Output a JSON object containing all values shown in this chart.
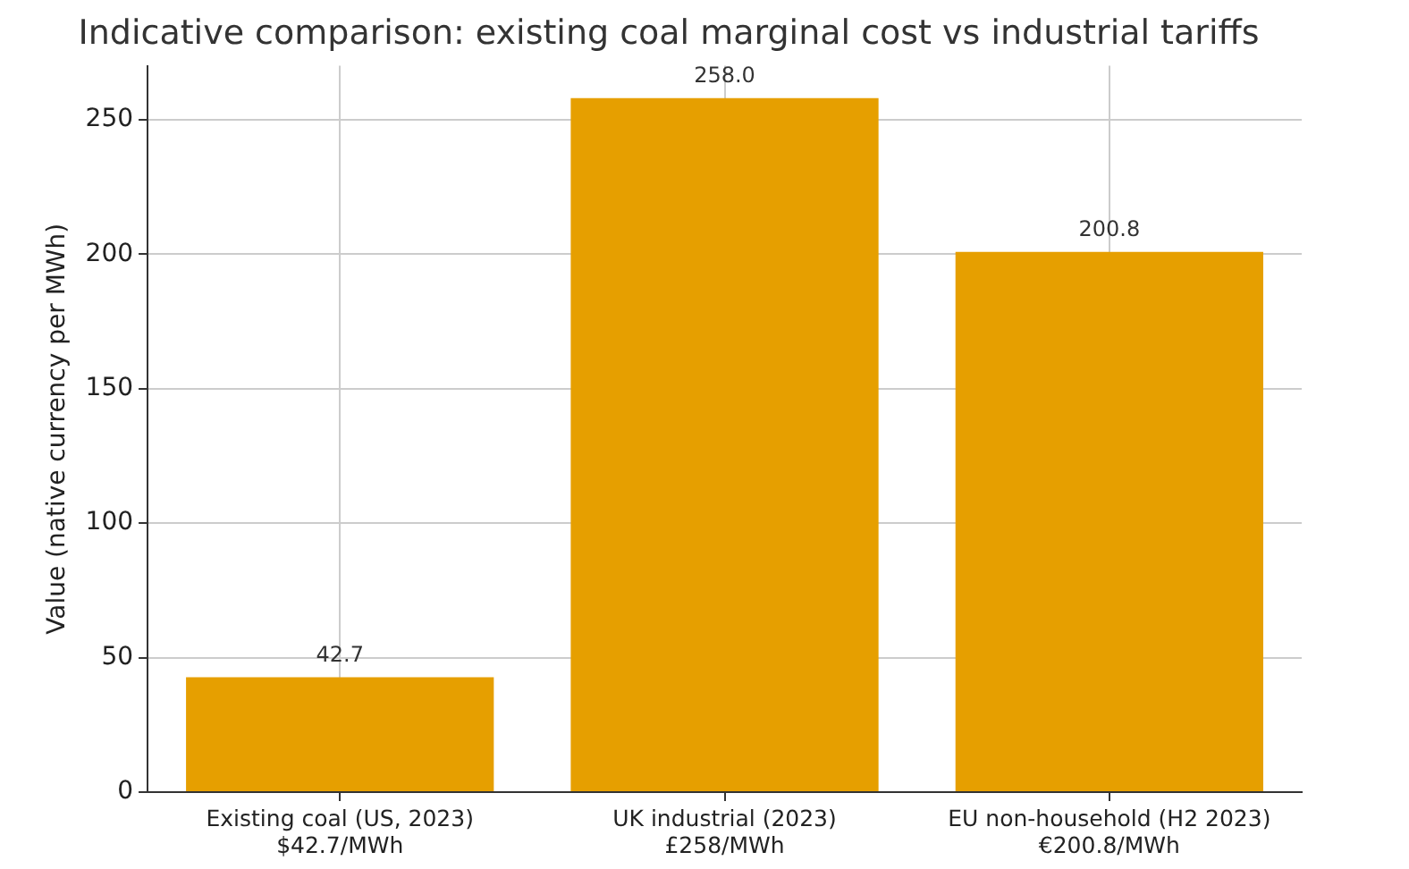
{
  "chart_data": {
    "type": "bar",
    "title": "Indicative comparison: existing coal marginal cost vs industrial tariffs",
    "ylabel": "Value (native currency per MWh)",
    "categories": [
      "Existing coal (US, 2023)\n$42.7/MWh",
      "UK industrial (2023)\n£258/MWh",
      "EU non-household (H2 2023)\n€200.8/MWh"
    ],
    "values": [
      42.7,
      258.0,
      200.8
    ],
    "value_labels": [
      "42.7",
      "258.0",
      "200.8"
    ],
    "color": "#e69f00",
    "ylim": [
      0,
      270
    ],
    "yticks": [
      0,
      50,
      100,
      150,
      200,
      250
    ],
    "grid": true
  }
}
